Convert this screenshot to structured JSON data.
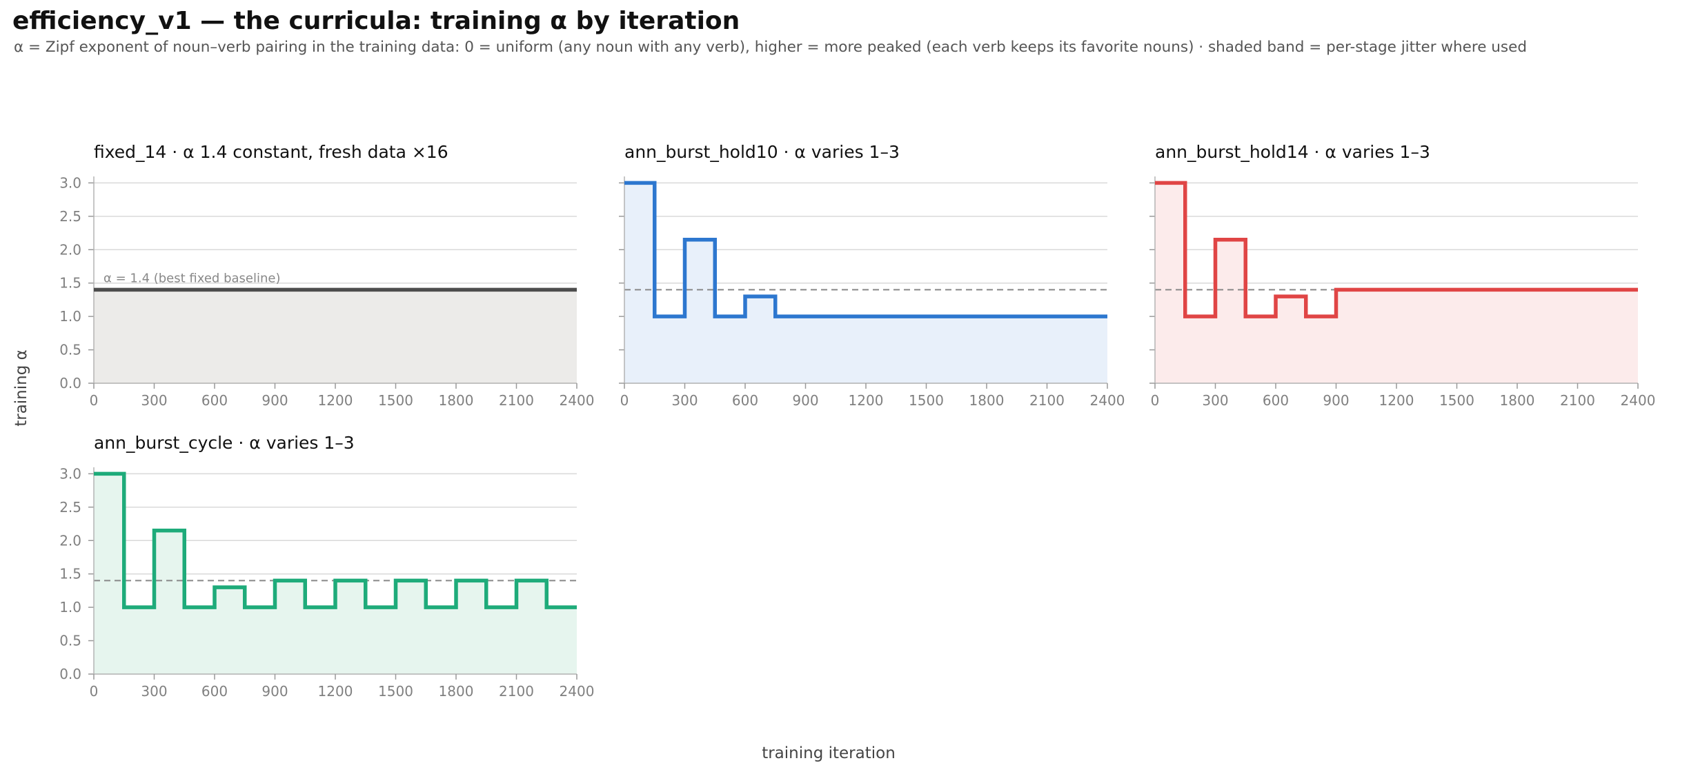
{
  "title": "efficiency_v1 — the curricula: training α by iteration",
  "subtitle": "α = Zipf exponent of noun–verb pairing in the training data: 0 = uniform (any noun with any verb), higher = more peaked (each verb keeps its favorite nouns) · shaded band = per-stage jitter where used",
  "xlabel": "training iteration",
  "ylabel": "training α",
  "chart_data": [
    {
      "type": "line",
      "title": "fixed_14   ·   α 1.4 constant, fresh data ×16",
      "color": "#4d4d4d",
      "fill": "#ecebe9",
      "baseline": null,
      "annotation": "α = 1.4 (best fixed baseline)",
      "xlim": [
        0,
        2400
      ],
      "ylim": [
        0,
        3.2
      ],
      "xticks": [
        0,
        300,
        600,
        900,
        1200,
        1500,
        1800,
        2100,
        2400
      ],
      "yticks": [
        "0.0",
        "0.5",
        "1.0",
        "1.5",
        "2.0",
        "2.5",
        "3.0"
      ],
      "grid": "horizontal",
      "x": [
        0,
        2400
      ],
      "y": [
        1.4,
        1.4
      ]
    },
    {
      "type": "line",
      "title": "ann_burst_hold10   ·   α varies 1–3",
      "color": "#2d77cf",
      "fill": "#e8f0fa",
      "baseline": 1.4,
      "xlim": [
        0,
        2400
      ],
      "ylim": [
        0,
        3.2
      ],
      "xticks": [
        0,
        300,
        600,
        900,
        1200,
        1500,
        1800,
        2100,
        2400
      ],
      "yticks": [
        "0.0",
        "0.5",
        "1.0",
        "1.5",
        "2.0",
        "2.5",
        "3.0"
      ],
      "grid": "horizontal",
      "x": [
        0,
        150,
        150,
        300,
        300,
        450,
        450,
        600,
        600,
        750,
        750,
        2400
      ],
      "y": [
        3.0,
        3.0,
        1.0,
        1.0,
        2.15,
        2.15,
        1.0,
        1.0,
        1.3,
        1.3,
        1.0,
        1.0
      ]
    },
    {
      "type": "line",
      "title": "ann_burst_hold14   ·   α varies 1–3",
      "color": "#e04545",
      "fill": "#fcebeb",
      "baseline": 1.4,
      "xlim": [
        0,
        2400
      ],
      "ylim": [
        0,
        3.2
      ],
      "xticks": [
        0,
        300,
        600,
        900,
        1200,
        1500,
        1800,
        2100,
        2400
      ],
      "yticks": [
        "0.0",
        "0.5",
        "1.0",
        "1.5",
        "2.0",
        "2.5",
        "3.0"
      ],
      "grid": "horizontal",
      "x": [
        0,
        150,
        150,
        300,
        300,
        450,
        450,
        600,
        600,
        750,
        750,
        900,
        900,
        2400
      ],
      "y": [
        3.0,
        3.0,
        1.0,
        1.0,
        2.15,
        2.15,
        1.0,
        1.0,
        1.3,
        1.3,
        1.0,
        1.0,
        1.4,
        1.4
      ]
    },
    {
      "type": "line",
      "title": "ann_burst_cycle   ·   α varies 1–3",
      "color": "#1eab7a",
      "fill": "#e6f5ee",
      "baseline": 1.4,
      "xlim": [
        0,
        2400
      ],
      "ylim": [
        0,
        3.2
      ],
      "xticks": [
        0,
        300,
        600,
        900,
        1200,
        1500,
        1800,
        2100,
        2400
      ],
      "yticks": [
        "0.0",
        "0.5",
        "1.0",
        "1.5",
        "2.0",
        "2.5",
        "3.0"
      ],
      "grid": "horizontal",
      "x": [
        0,
        150,
        150,
        300,
        300,
        450,
        450,
        600,
        600,
        750,
        750,
        900,
        900,
        1050,
        1050,
        1200,
        1200,
        1350,
        1350,
        1500,
        1500,
        1650,
        1650,
        1800,
        1800,
        1950,
        1950,
        2100,
        2100,
        2250,
        2250,
        2400
      ],
      "y": [
        3.0,
        3.0,
        1.0,
        1.0,
        2.15,
        2.15,
        1.0,
        1.0,
        1.3,
        1.3,
        1.0,
        1.0,
        1.4,
        1.4,
        1.0,
        1.0,
        1.4,
        1.4,
        1.0,
        1.0,
        1.4,
        1.4,
        1.0,
        1.0,
        1.4,
        1.4,
        1.0,
        1.0,
        1.4,
        1.4,
        1.0,
        1.0
      ]
    }
  ]
}
